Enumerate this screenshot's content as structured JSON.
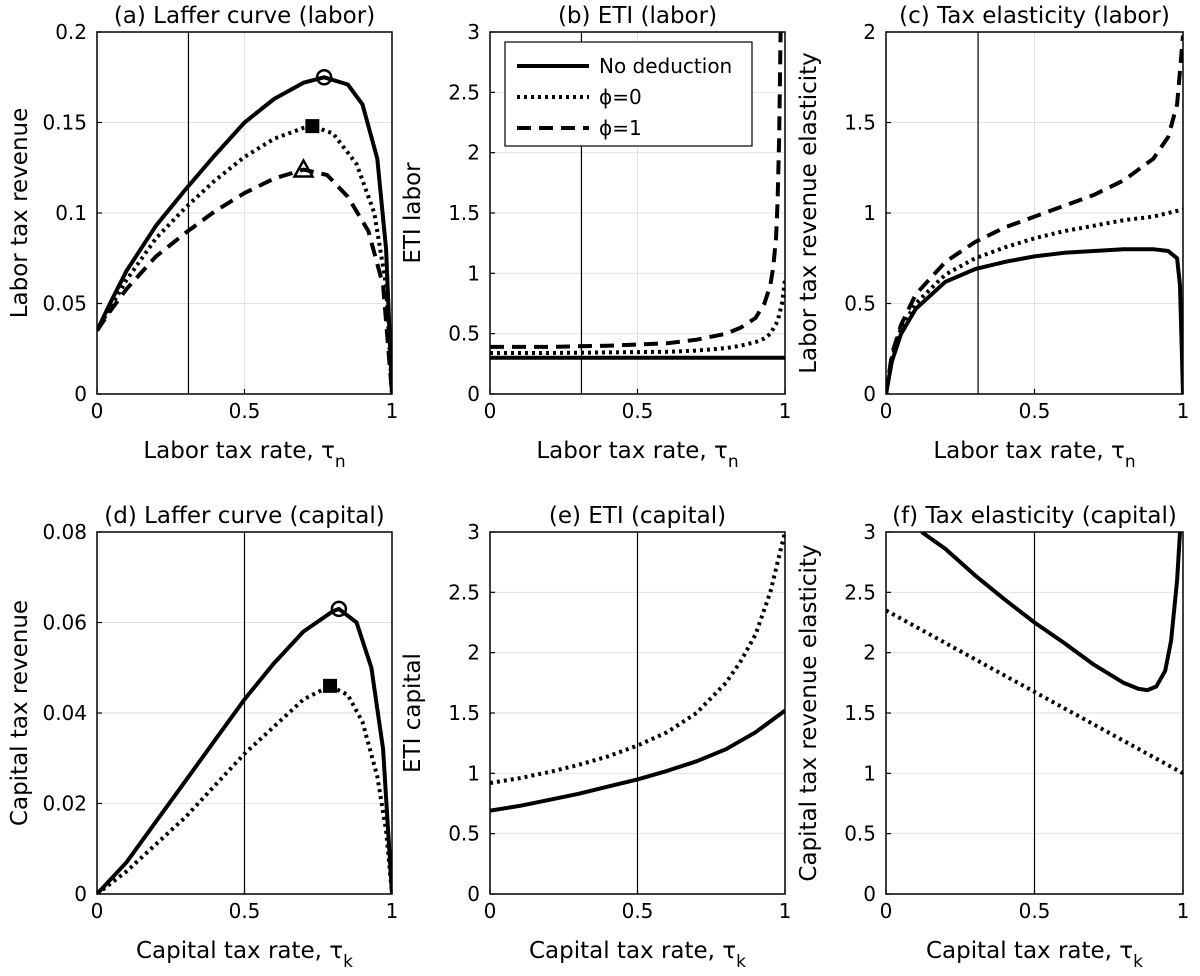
{
  "figure": {
    "legend": {
      "entries": [
        {
          "label": "No deduction",
          "style": "solid"
        },
        {
          "label": "ϕ=0",
          "style": "dotted"
        },
        {
          "label": "ϕ=1",
          "style": "dashed"
        }
      ]
    }
  },
  "chart_data": [
    {
      "id": "a",
      "type": "line",
      "title": "(a) Laffer curve (labor)",
      "xlabel": "Labor tax rate, τ",
      "xlabel_sub": "n",
      "ylabel": "Labor tax revenue",
      "xlim": [
        0,
        1
      ],
      "ylim": [
        0,
        0.2
      ],
      "xticks": [
        0,
        0.5,
        1
      ],
      "xtick_labels": [
        "0",
        "0.5",
        "1"
      ],
      "yticks": [
        0,
        0.05,
        0.1,
        0.15,
        0.2
      ],
      "ytick_labels": [
        "0",
        "0.05",
        "0.1",
        "0.15",
        "0.2"
      ],
      "grid": true,
      "vline": 0.31,
      "series": [
        {
          "style": "solid",
          "marker": "circle",
          "marker_at": [
            0.77,
            0.175
          ],
          "x": [
            0,
            0.05,
            0.1,
            0.2,
            0.3,
            0.4,
            0.5,
            0.6,
            0.7,
            0.77,
            0.85,
            0.9,
            0.95,
            0.98,
            1.0
          ],
          "y": [
            0.035,
            0.052,
            0.068,
            0.093,
            0.113,
            0.132,
            0.15,
            0.163,
            0.172,
            0.175,
            0.171,
            0.16,
            0.13,
            0.08,
            0.0
          ]
        },
        {
          "style": "dotted",
          "marker": "square",
          "marker_at": [
            0.73,
            0.148
          ],
          "x": [
            0,
            0.05,
            0.1,
            0.2,
            0.3,
            0.4,
            0.5,
            0.6,
            0.7,
            0.73,
            0.8,
            0.88,
            0.94,
            0.98,
            1.0
          ],
          "y": [
            0.035,
            0.049,
            0.063,
            0.086,
            0.103,
            0.118,
            0.131,
            0.141,
            0.147,
            0.148,
            0.144,
            0.127,
            0.1,
            0.06,
            0.0
          ]
        },
        {
          "style": "dashed",
          "marker": "triangle",
          "marker_at": [
            0.7,
            0.124
          ],
          "x": [
            0,
            0.05,
            0.1,
            0.2,
            0.3,
            0.4,
            0.5,
            0.6,
            0.7,
            0.78,
            0.85,
            0.92,
            0.97,
            1.0
          ],
          "y": [
            0.035,
            0.047,
            0.058,
            0.076,
            0.089,
            0.101,
            0.111,
            0.119,
            0.124,
            0.121,
            0.109,
            0.09,
            0.06,
            0.0
          ]
        }
      ]
    },
    {
      "id": "b",
      "type": "line",
      "title": "(b) ETI (labor)",
      "xlabel": "Labor tax rate, τ",
      "xlabel_sub": "n",
      "ylabel": "ETI labor",
      "xlim": [
        0,
        1
      ],
      "ylim": [
        0,
        3
      ],
      "xticks": [
        0,
        0.5,
        1
      ],
      "xtick_labels": [
        "0",
        "0.5",
        "1"
      ],
      "yticks": [
        0,
        0.5,
        1,
        1.5,
        2,
        2.5,
        3
      ],
      "ytick_labels": [
        "0",
        "0.5",
        "1",
        "1.5",
        "2",
        "2.5",
        "3"
      ],
      "grid": true,
      "vline": 0.31,
      "legend_position": "top-left",
      "series": [
        {
          "style": "solid",
          "x": [
            0,
            1
          ],
          "y": [
            0.3,
            0.3
          ]
        },
        {
          "style": "dotted",
          "x": [
            0,
            0.2,
            0.4,
            0.6,
            0.7,
            0.8,
            0.85,
            0.9,
            0.93,
            0.95,
            0.97,
            0.98,
            0.99,
            1.0
          ],
          "y": [
            0.34,
            0.34,
            0.345,
            0.35,
            0.36,
            0.38,
            0.4,
            0.43,
            0.46,
            0.5,
            0.58,
            0.65,
            0.75,
            0.95
          ]
        },
        {
          "style": "dashed",
          "x": [
            0,
            0.2,
            0.4,
            0.6,
            0.7,
            0.8,
            0.85,
            0.9,
            0.93,
            0.95,
            0.96,
            0.97,
            0.975,
            0.98,
            0.985
          ],
          "y": [
            0.39,
            0.39,
            0.4,
            0.42,
            0.45,
            0.5,
            0.55,
            0.63,
            0.75,
            0.9,
            1.05,
            1.3,
            1.6,
            2.1,
            3.0
          ]
        }
      ]
    },
    {
      "id": "c",
      "type": "line",
      "title": "(c) Tax elasticity (labor)",
      "xlabel": "Labor tax rate, τ",
      "xlabel_sub": "n",
      "ylabel": "Labor tax revenue elasticity",
      "xlim": [
        0,
        1
      ],
      "ylim": [
        0,
        2
      ],
      "xticks": [
        0,
        0.5,
        1
      ],
      "xtick_labels": [
        "0",
        "0.5",
        "1"
      ],
      "yticks": [
        0,
        0.5,
        1,
        1.5,
        2
      ],
      "ytick_labels": [
        "0",
        "0.5",
        "1",
        "1.5",
        "2"
      ],
      "grid": true,
      "vline": 0.31,
      "series": [
        {
          "style": "solid",
          "x": [
            0,
            0.02,
            0.05,
            0.1,
            0.2,
            0.3,
            0.4,
            0.5,
            0.6,
            0.7,
            0.8,
            0.9,
            0.95,
            0.98,
            0.99,
            1.0
          ],
          "y": [
            0,
            0.18,
            0.33,
            0.47,
            0.62,
            0.69,
            0.73,
            0.76,
            0.78,
            0.79,
            0.8,
            0.8,
            0.79,
            0.75,
            0.6,
            0.0
          ]
        },
        {
          "style": "dotted",
          "x": [
            0,
            0.02,
            0.05,
            0.1,
            0.2,
            0.3,
            0.4,
            0.5,
            0.6,
            0.7,
            0.8,
            0.9,
            0.95,
            1.0
          ],
          "y": [
            0,
            0.2,
            0.36,
            0.5,
            0.66,
            0.75,
            0.81,
            0.86,
            0.9,
            0.93,
            0.96,
            0.98,
            1.0,
            1.02
          ]
        },
        {
          "style": "dashed",
          "x": [
            0,
            0.02,
            0.05,
            0.1,
            0.2,
            0.3,
            0.4,
            0.5,
            0.6,
            0.7,
            0.8,
            0.9,
            0.95,
            0.98,
            1.0
          ],
          "y": [
            0,
            0.22,
            0.38,
            0.55,
            0.73,
            0.84,
            0.92,
            0.98,
            1.04,
            1.1,
            1.18,
            1.3,
            1.42,
            1.6,
            1.98
          ]
        }
      ]
    },
    {
      "id": "d",
      "type": "line",
      "title": "(d) Laffer curve (capital)",
      "xlabel": "Capital tax rate, τ",
      "xlabel_sub": "k",
      "ylabel": "Capital tax revenue",
      "xlim": [
        0,
        1
      ],
      "ylim": [
        0,
        0.08
      ],
      "xticks": [
        0,
        0.5,
        1
      ],
      "xtick_labels": [
        "0",
        "0.5",
        "1"
      ],
      "yticks": [
        0,
        0.02,
        0.04,
        0.06,
        0.08
      ],
      "ytick_labels": [
        "0",
        "0.02",
        "0.04",
        "0.06",
        "0.08"
      ],
      "grid": true,
      "vline": 0.5,
      "series": [
        {
          "style": "solid",
          "marker": "circle",
          "marker_at": [
            0.82,
            0.063
          ],
          "x": [
            0,
            0.1,
            0.2,
            0.3,
            0.4,
            0.5,
            0.6,
            0.7,
            0.8,
            0.82,
            0.88,
            0.93,
            0.97,
            1.0
          ],
          "y": [
            0,
            0.007,
            0.016,
            0.025,
            0.034,
            0.043,
            0.051,
            0.058,
            0.0625,
            0.063,
            0.06,
            0.05,
            0.032,
            0.0
          ]
        },
        {
          "style": "dotted",
          "marker": "square",
          "marker_at": [
            0.79,
            0.046
          ],
          "x": [
            0,
            0.1,
            0.2,
            0.3,
            0.4,
            0.5,
            0.6,
            0.7,
            0.79,
            0.85,
            0.9,
            0.95,
            0.98,
            1.0
          ],
          "y": [
            0,
            0.005,
            0.011,
            0.017,
            0.024,
            0.031,
            0.037,
            0.043,
            0.046,
            0.044,
            0.038,
            0.026,
            0.014,
            0.0
          ]
        }
      ]
    },
    {
      "id": "e",
      "type": "line",
      "title": "(e) ETI (capital)",
      "xlabel": "Capital tax rate, τ",
      "xlabel_sub": "k",
      "ylabel": "ETI capital",
      "xlim": [
        0,
        1
      ],
      "ylim": [
        0,
        3
      ],
      "xticks": [
        0,
        0.5,
        1
      ],
      "xtick_labels": [
        "0",
        "0.5",
        "1"
      ],
      "yticks": [
        0,
        0.5,
        1,
        1.5,
        2,
        2.5,
        3
      ],
      "ytick_labels": [
        "0",
        "0.5",
        "1",
        "1.5",
        "2",
        "2.5",
        "3"
      ],
      "grid": true,
      "vline": 0.5,
      "series": [
        {
          "style": "solid",
          "x": [
            0,
            0.1,
            0.2,
            0.3,
            0.4,
            0.5,
            0.6,
            0.7,
            0.8,
            0.9,
            1.0
          ],
          "y": [
            0.69,
            0.73,
            0.78,
            0.83,
            0.89,
            0.95,
            1.02,
            1.1,
            1.2,
            1.34,
            1.52
          ]
        },
        {
          "style": "dotted",
          "x": [
            0,
            0.1,
            0.2,
            0.3,
            0.4,
            0.5,
            0.6,
            0.7,
            0.8,
            0.85,
            0.9,
            0.95,
            0.98,
            1.0
          ],
          "y": [
            0.92,
            0.96,
            1.01,
            1.07,
            1.14,
            1.23,
            1.34,
            1.5,
            1.75,
            1.93,
            2.15,
            2.5,
            2.8,
            3.0
          ]
        }
      ]
    },
    {
      "id": "f",
      "type": "line",
      "title": "(f) Tax elasticity (capital)",
      "xlabel": "Capital tax rate, τ",
      "xlabel_sub": "k",
      "ylabel": "Capital tax revenue elasticity",
      "xlim": [
        0,
        1
      ],
      "ylim": [
        0,
        3
      ],
      "xticks": [
        0,
        0.5,
        1
      ],
      "xtick_labels": [
        "0",
        "0.5",
        "1"
      ],
      "yticks": [
        0,
        0.5,
        1,
        1.5,
        2,
        2.5,
        3
      ],
      "ytick_labels": [
        "0",
        "0.5",
        "1",
        "1.5",
        "2",
        "2.5",
        "3"
      ],
      "grid": true,
      "vline": 0.5,
      "series": [
        {
          "style": "solid",
          "x": [
            0.12,
            0.2,
            0.3,
            0.4,
            0.5,
            0.6,
            0.7,
            0.8,
            0.85,
            0.88,
            0.91,
            0.94,
            0.96,
            0.98,
            0.99
          ],
          "y": [
            3.0,
            2.86,
            2.64,
            2.44,
            2.25,
            2.08,
            1.9,
            1.75,
            1.7,
            1.69,
            1.72,
            1.85,
            2.1,
            2.6,
            3.0
          ]
        },
        {
          "style": "dotted",
          "x": [
            0,
            0.2,
            0.4,
            0.6,
            0.8,
            1.0
          ],
          "y": [
            2.35,
            2.08,
            1.81,
            1.54,
            1.27,
            1.0
          ]
        }
      ]
    }
  ]
}
